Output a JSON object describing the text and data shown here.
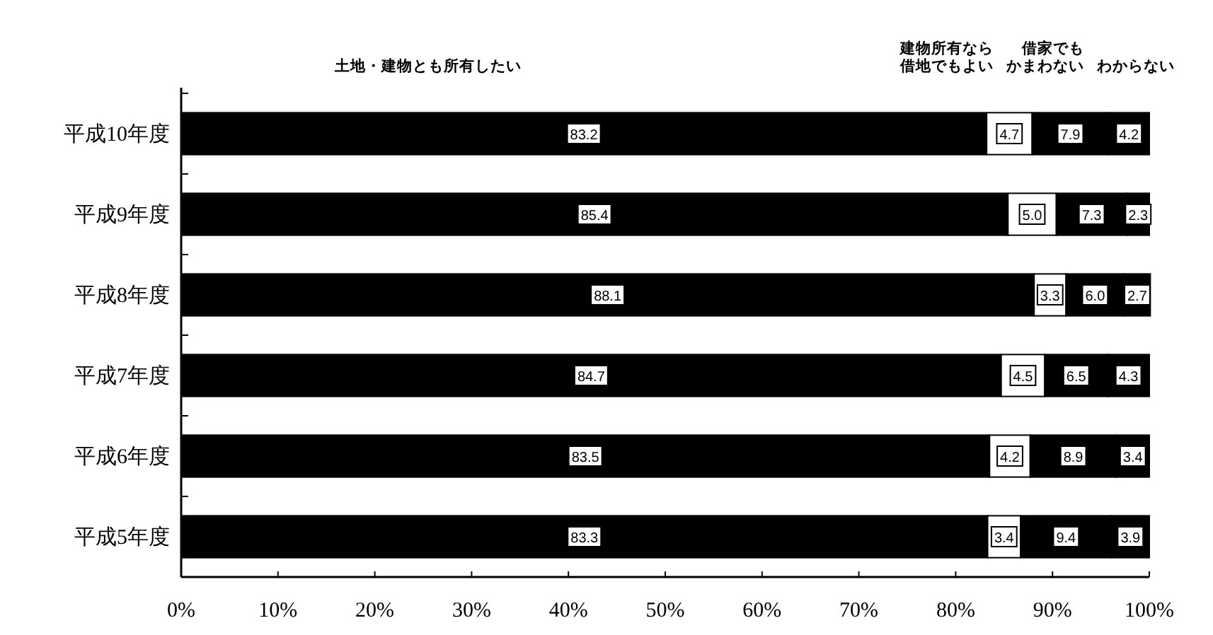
{
  "chart_data": {
    "type": "bar",
    "orientation": "horizontal",
    "stacked": true,
    "categories": [
      "平成10年度",
      "平成9年度",
      "平成8年度",
      "平成7年度",
      "平成6年度",
      "平成5年度"
    ],
    "series": [
      {
        "name": "土地・建物とも所有したい",
        "color": "#000000",
        "values": [
          83.2,
          85.4,
          88.1,
          84.7,
          83.5,
          83.3
        ],
        "value_labels": [
          "83.2",
          "85.4",
          "88.1",
          "84.7",
          "83.5",
          "83.3"
        ]
      },
      {
        "name": "建物所有なら借地でもよい",
        "color": "#ffffff",
        "values": [
          4.7,
          5.0,
          3.3,
          4.5,
          4.2,
          3.4
        ],
        "value_labels": [
          "4.7",
          "5.0",
          "3.3",
          "4.5",
          "4.2",
          "3.4"
        ]
      },
      {
        "name": "借家でもかまわない",
        "color": "#000000",
        "values": [
          7.9,
          7.3,
          6.0,
          6.5,
          8.9,
          9.4
        ],
        "value_labels": [
          "7.9",
          "7.3",
          "6.0",
          "6.5",
          "8.9",
          "9.4"
        ]
      },
      {
        "name": "わからない",
        "color": "#000000",
        "values": [
          4.2,
          2.3,
          2.7,
          4.3,
          3.4,
          3.9
        ],
        "value_labels": [
          "4.2",
          "2.3",
          "2.7",
          "4.3",
          "3.4",
          "3.9"
        ]
      }
    ],
    "xlim": [
      0,
      100
    ],
    "xticks": [
      {
        "value": 0,
        "label": "0%"
      },
      {
        "value": 10,
        "label": "10%"
      },
      {
        "value": 20,
        "label": "20%"
      },
      {
        "value": 30,
        "label": "30%"
      },
      {
        "value": 40,
        "label": "40%"
      },
      {
        "value": 50,
        "label": "50%"
      },
      {
        "value": 60,
        "label": "60%"
      },
      {
        "value": 70,
        "label": "70%"
      },
      {
        "value": 80,
        "label": "80%"
      },
      {
        "value": 90,
        "label": "90%"
      },
      {
        "value": 100,
        "label": "100%"
      }
    ],
    "grid": false
  }
}
